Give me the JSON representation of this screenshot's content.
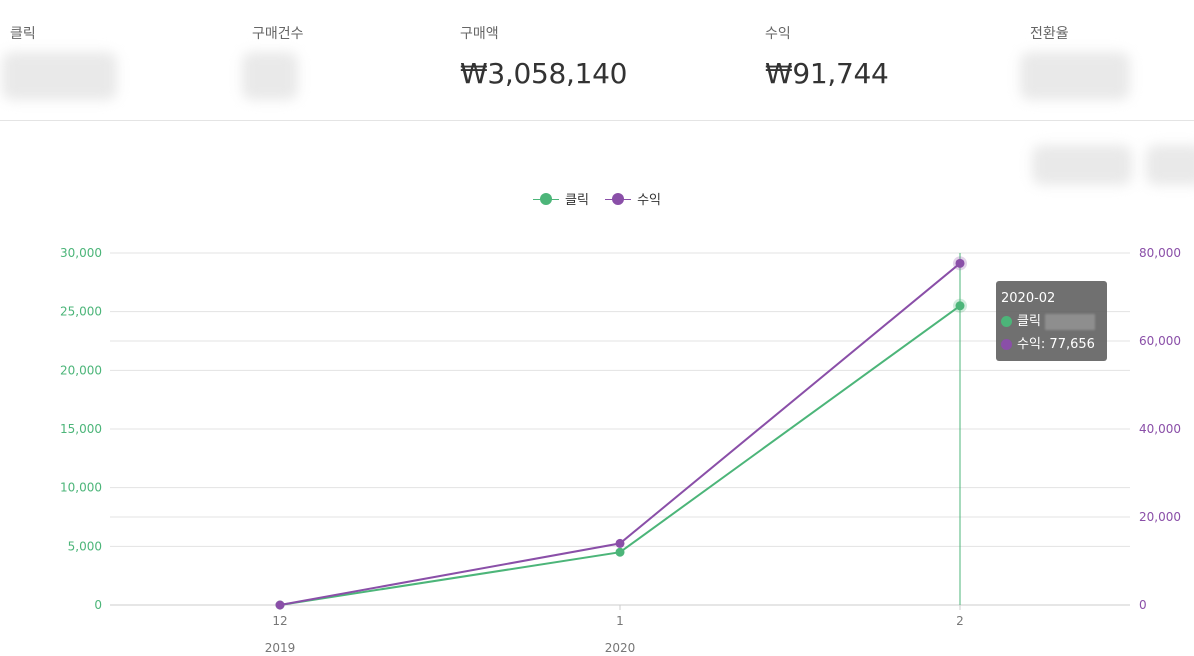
{
  "stats": [
    {
      "label": "클릭",
      "value": ""
    },
    {
      "label": "구매건수",
      "value": ""
    },
    {
      "label": "구매액",
      "value": "₩3,058,140"
    },
    {
      "label": "수익",
      "value": "₩91,744"
    },
    {
      "label": "전환율",
      "value": ""
    }
  ],
  "colors": {
    "clicks": "#4cb579",
    "revenue": "#8a4fa8",
    "grid": "#e3e3e3",
    "axis_text": "#777777"
  },
  "legend": {
    "clicks": "클릭",
    "revenue": "수익"
  },
  "tooltip": {
    "title": "2020-02",
    "clicks_label": "클릭",
    "revenue_label": "수익: 77,656"
  },
  "chart_data": {
    "type": "line",
    "x_ticks": [
      "12",
      "1",
      "2"
    ],
    "x_year_labels": [
      "2019",
      "2020",
      ""
    ],
    "series": [
      {
        "name": "클릭",
        "axis": "left",
        "values": [
          0,
          4500,
          25500
        ]
      },
      {
        "name": "수익",
        "axis": "right",
        "values": [
          0,
          14000,
          77656
        ]
      }
    ],
    "left_axis": {
      "ticks": [
        "0",
        "5,000",
        "10,000",
        "15,000",
        "20,000",
        "25,000",
        "30,000"
      ],
      "range": [
        0,
        30000
      ]
    },
    "right_axis": {
      "ticks": [
        "0",
        "20,000",
        "40,000",
        "60,000",
        "80,000"
      ],
      "range": [
        0,
        80000
      ]
    },
    "grid": true,
    "legend_position": "top-center",
    "highlight_index": 2
  }
}
